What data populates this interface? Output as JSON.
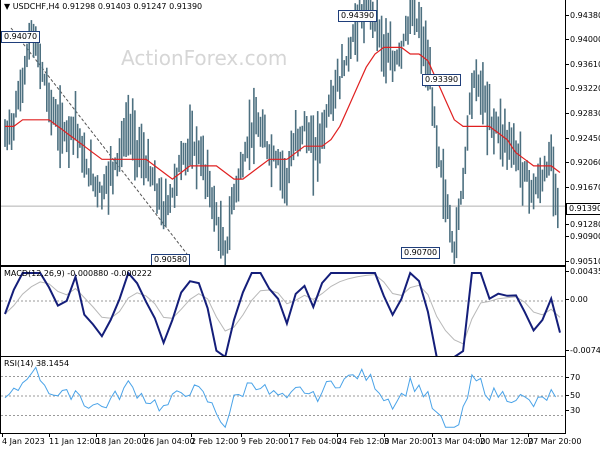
{
  "main": {
    "header": "USDCHF,H4  0.91298 0.91403 0.91247 0.91390",
    "watermark": "ActionForex.com",
    "current_price": "0.91390",
    "callouts": {
      "high_left": "0.94070",
      "high_mid": "0.94390",
      "low_feb": "0.90580",
      "pivot_mar": "0.93390",
      "low_mar": "0.90700"
    },
    "y_ticks": [
      "0.94380",
      "0.94000",
      "0.93610",
      "0.93220",
      "0.92830",
      "0.92450",
      "0.92060",
      "0.91670",
      "0.91280",
      "0.90900",
      "0.90510"
    ]
  },
  "macd": {
    "header": "MACD(12,26,9) -0.000880 -0.000222",
    "y_ticks": [
      "0.004354",
      "0.00",
      "-0.007417"
    ]
  },
  "rsi": {
    "header": "RSI(14) 38.1454",
    "y_ticks": [
      "70",
      "50",
      "30"
    ]
  },
  "x_ticks": [
    "4 Jan 2023",
    "11 Jan 12:00",
    "18 Jan 20:00",
    "26 Jan 04:00",
    "2 Feb 12:00",
    "9 Feb 20:00",
    "17 Feb 04:00",
    "24 Feb 12:00",
    "3 Mar 20:00",
    "13 Mar 04:00",
    "20 Mar 12:00",
    "27 Mar 20:00"
  ],
  "colors": {
    "candles": "#4d7080",
    "ma": "#e02020",
    "macd_line": "#141e7a",
    "signal_line": "#b8b8b8",
    "rsi_line": "#4aa3e8",
    "dotted": "#9a9a9a"
  },
  "chart_data": {
    "type": "line",
    "title": "USDCHF,H4",
    "series": [
      {
        "name": "USDCHF",
        "values": [
          0.924,
          0.927,
          0.933,
          0.94,
          0.936,
          0.93,
          0.926,
          0.925,
          0.927,
          0.92,
          0.918,
          0.916,
          0.919,
          0.922,
          0.926,
          0.923,
          0.92,
          0.917,
          0.913,
          0.916,
          0.921,
          0.923,
          0.922,
          0.918,
          0.912,
          0.906,
          0.916,
          0.92,
          0.926,
          0.925,
          0.922,
          0.921,
          0.918,
          0.924,
          0.926,
          0.922,
          0.925,
          0.93,
          0.933,
          0.937,
          0.942,
          0.944,
          0.943,
          0.938,
          0.935,
          0.938,
          0.943,
          0.941,
          0.935,
          0.924,
          0.915,
          0.907,
          0.918,
          0.933,
          0.932,
          0.927,
          0.926,
          0.924,
          0.922,
          0.919,
          0.916,
          0.918,
          0.921,
          0.914
        ]
      },
      {
        "name": "MA",
        "values": [
          0.926,
          0.926,
          0.927,
          0.927,
          0.927,
          0.927,
          0.926,
          0.925,
          0.924,
          0.923,
          0.922,
          0.921,
          0.921,
          0.921,
          0.921,
          0.921,
          0.921,
          0.92,
          0.919,
          0.918,
          0.919,
          0.92,
          0.92,
          0.92,
          0.92,
          0.919,
          0.918,
          0.918,
          0.919,
          0.92,
          0.921,
          0.921,
          0.921,
          0.922,
          0.923,
          0.923,
          0.923,
          0.924,
          0.926,
          0.929,
          0.932,
          0.935,
          0.937,
          0.938,
          0.938,
          0.938,
          0.937,
          0.937,
          0.936,
          0.933,
          0.93,
          0.927,
          0.926,
          0.926,
          0.926,
          0.926,
          0.925,
          0.924,
          0.922,
          0.921,
          0.92,
          0.92,
          0.92,
          0.919
        ]
      }
    ]
  }
}
